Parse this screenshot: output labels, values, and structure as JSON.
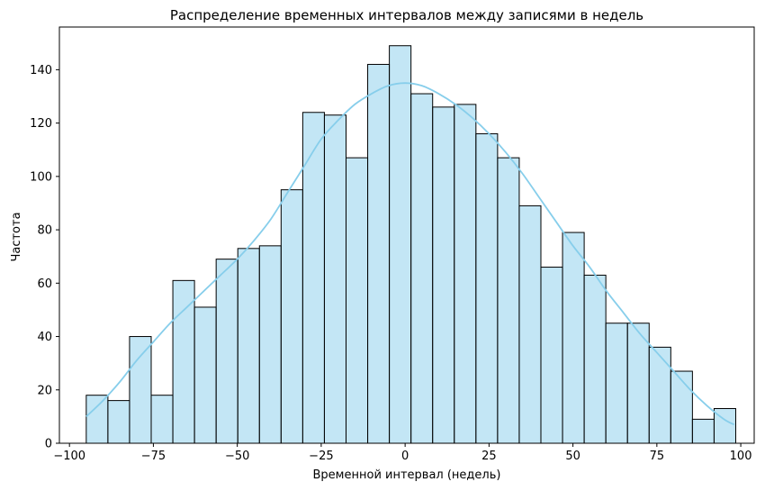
{
  "chart_data": {
    "type": "bar",
    "subtype": "histogram-with-kde",
    "title": "Распределение временных интервалов между записями в недель",
    "xlabel": "Временной интервал (недель)",
    "ylabel": "Частота",
    "xlim": [
      -103,
      104
    ],
    "ylim": [
      0,
      156
    ],
    "xticks": [
      -100,
      -75,
      -50,
      -25,
      0,
      25,
      50,
      75,
      100
    ],
    "xtick_labels": [
      "−100",
      "−75",
      "−50",
      "−25",
      "0",
      "25",
      "50",
      "75",
      "100"
    ],
    "yticks": [
      0,
      20,
      40,
      60,
      80,
      100,
      120,
      140
    ],
    "ytick_labels": [
      "0",
      "20",
      "40",
      "60",
      "80",
      "100",
      "120",
      "140"
    ],
    "bin_start": -95,
    "bin_width": 6.45,
    "values": [
      18,
      16,
      40,
      18,
      61,
      51,
      69,
      73,
      74,
      95,
      124,
      123,
      107,
      142,
      149,
      131,
      126,
      127,
      116,
      107,
      89,
      66,
      79,
      63,
      45,
      45,
      36,
      27,
      9,
      13
    ],
    "kde_x": [
      -95,
      -90,
      -85,
      -80,
      -75,
      -70,
      -65,
      -60,
      -55,
      -50,
      -45,
      -40,
      -35,
      -30,
      -25,
      -20,
      -15,
      -10,
      -5,
      0,
      5,
      10,
      15,
      20,
      25,
      30,
      35,
      40,
      45,
      50,
      55,
      60,
      65,
      70,
      75,
      80,
      85,
      90,
      95,
      98
    ],
    "kde_y": [
      10,
      16,
      23,
      31,
      38,
      45,
      51,
      57,
      63,
      69,
      76,
      84,
      94,
      104,
      114,
      121,
      127,
      131,
      134,
      135,
      134,
      131,
      127,
      122,
      116,
      109,
      101,
      92,
      83,
      74,
      66,
      57,
      49,
      41,
      34,
      27,
      20,
      14,
      9,
      7
    ],
    "bar_color": "#87ceeb",
    "bar_fill_opacity": 0.5,
    "bar_edge_color": "#000000",
    "kde_color": "#87ceeb",
    "grid": false,
    "legend": "none"
  }
}
